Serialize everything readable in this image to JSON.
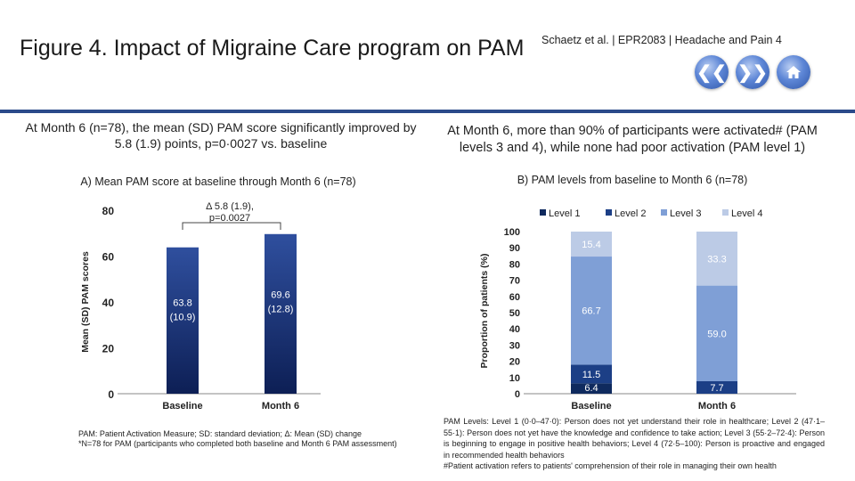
{
  "header": {
    "title": "Figure 4. Impact of Migraine Care program on PAM",
    "citation": "Schaetz et al. | EPR2083 | Headache and Pain 4",
    "nav": {
      "prev_icon": "chevron-left-icon",
      "next_icon": "chevron-right-icon",
      "home_icon": "home-icon"
    },
    "colors": {
      "divider": "#2b4a8a",
      "nav": "#4a74c9"
    }
  },
  "left": {
    "heading": "At Month 6 (n=78), the mean (SD) PAM score significantly improved by 5.8 (1.9) points, p=0·0027 vs. baseline",
    "subtitle": "A) Mean PAM score at baseline through Month 6 (n=78)",
    "footnote_1": "PAM: Patient Activation Measure; SD: standard deviation; Δ: Mean (SD) change",
    "footnote_2": "*N=78 for PAM (participants who completed both baseline and Month 6 PAM assessment)"
  },
  "right": {
    "heading": "At Month 6, more than 90% of participants were activated# (PAM levels 3 and 4), while none had poor activation (PAM level 1)",
    "subtitle": "B) PAM levels from baseline to Month 6 (n=78)",
    "footnote_1": "PAM Levels: Level 1 (0·0–47·0): Person does not yet understand their role in healthcare; Level 2 (47·1–55·1): Person does not yet have the knowledge and confidence to take action; Level 3 (55·2–72·4): Person is beginning to engage in positive health behaviors; Level 4 (72·5–100): Person is proactive and engaged in recommended health behaviors",
    "footnote_2": "#Patient activation refers to patients' comprehension of their role in managing their own health"
  },
  "chart_data": [
    {
      "type": "bar",
      "title": "A) Mean PAM score at baseline through Month 6 (n=78)",
      "ylabel": "Mean (SD) PAM scores",
      "xlabel": "",
      "ylim": [
        0,
        80
      ],
      "yticks": [
        "0",
        "20",
        "40",
        "60",
        "80"
      ],
      "categories": [
        "Baseline",
        "Month 6"
      ],
      "values": [
        63.8,
        69.6
      ],
      "value_labels": [
        "63.8",
        "69.6"
      ],
      "sd_labels": [
        "(10.9)",
        "(12.8)"
      ],
      "annotation_line1": "Δ 5.8 (1.9),",
      "annotation_line2": "p=0.0027",
      "grid": false,
      "colors": {
        "bar_top": "#2f4f9e",
        "bar_bottom": "#0d1f55"
      }
    },
    {
      "type": "bar",
      "stacked": true,
      "title": "B) PAM levels from baseline to Month 6 (n=78)",
      "ylabel": "Proportion of patients (%)",
      "xlabel": "",
      "ylim": [
        0,
        100
      ],
      "yticks": [
        "0",
        "10",
        "20",
        "30",
        "40",
        "50",
        "60",
        "70",
        "80",
        "90",
        "100"
      ],
      "categories": [
        "Baseline",
        "Month 6"
      ],
      "legend_position": "top-right",
      "series": [
        {
          "name": "Level 1",
          "values": [
            6.4,
            0.0
          ],
          "labels": [
            "6.4",
            ""
          ],
          "color": "#0f2a5e"
        },
        {
          "name": "Level 2",
          "values": [
            11.5,
            7.7
          ],
          "labels": [
            "11.5",
            "7.7"
          ],
          "color": "#1c3f86"
        },
        {
          "name": "Level 3",
          "values": [
            66.7,
            59.0
          ],
          "labels": [
            "66.7",
            "59.0"
          ],
          "color": "#7f9fd6"
        },
        {
          "name": "Level 4",
          "values": [
            15.4,
            33.3
          ],
          "labels": [
            "15.4",
            "33.3"
          ],
          "color": "#bccbe6"
        }
      ],
      "grid": false
    }
  ]
}
